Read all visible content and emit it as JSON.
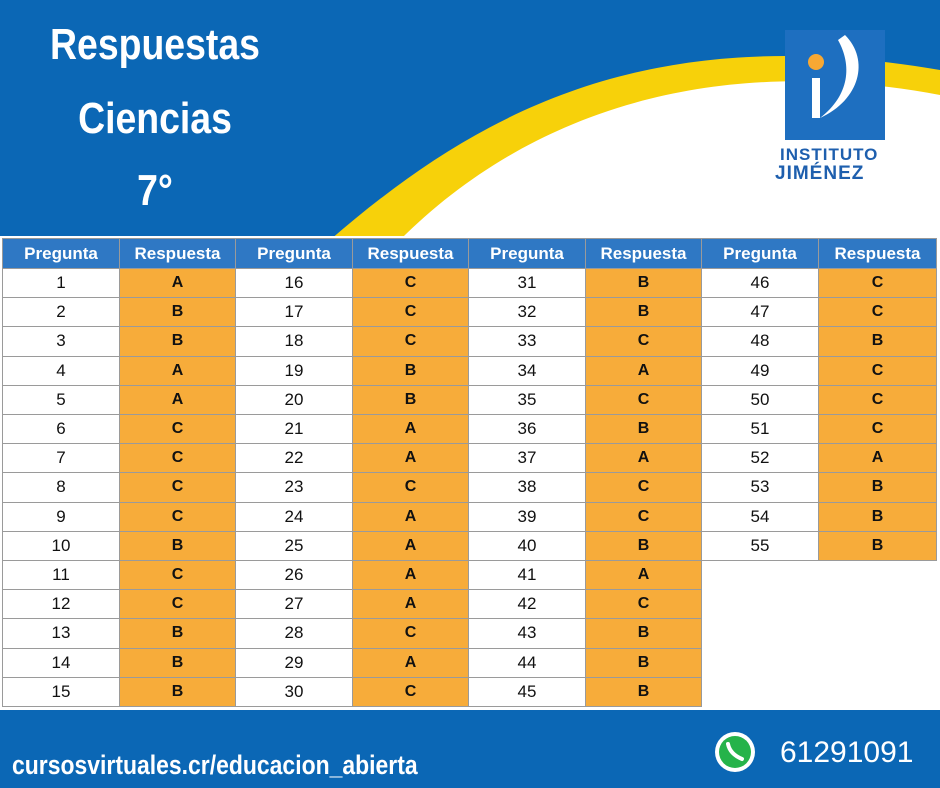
{
  "header": {
    "title_lines": [
      "Respuestas",
      "Ciencias",
      "7°"
    ]
  },
  "logo": {
    "line1": "INSTITUTO",
    "line2": "JIMÉNEZ"
  },
  "table": {
    "headers": [
      "Pregunta",
      "Respuesta",
      "Pregunta",
      "Respuesta",
      "Pregunta",
      "Respuesta",
      "Pregunta",
      "Respuesta"
    ],
    "groups": [
      {
        "rows": [
          [
            1,
            "A"
          ],
          [
            2,
            "B"
          ],
          [
            3,
            "B"
          ],
          [
            4,
            "A"
          ],
          [
            5,
            "A"
          ],
          [
            6,
            "C"
          ],
          [
            7,
            "C"
          ],
          [
            8,
            "C"
          ],
          [
            9,
            "C"
          ],
          [
            10,
            "B"
          ],
          [
            11,
            "C"
          ],
          [
            12,
            "C"
          ],
          [
            13,
            "B"
          ],
          [
            14,
            "B"
          ],
          [
            15,
            "B"
          ]
        ]
      },
      {
        "rows": [
          [
            16,
            "C"
          ],
          [
            17,
            "C"
          ],
          [
            18,
            "C"
          ],
          [
            19,
            "B"
          ],
          [
            20,
            "B"
          ],
          [
            21,
            "A"
          ],
          [
            22,
            "A"
          ],
          [
            23,
            "C"
          ],
          [
            24,
            "A"
          ],
          [
            25,
            "A"
          ],
          [
            26,
            "A"
          ],
          [
            27,
            "A"
          ],
          [
            28,
            "C"
          ],
          [
            29,
            "A"
          ],
          [
            30,
            "C"
          ]
        ]
      },
      {
        "rows": [
          [
            31,
            "B"
          ],
          [
            32,
            "B"
          ],
          [
            33,
            "C"
          ],
          [
            34,
            "A"
          ],
          [
            35,
            "C"
          ],
          [
            36,
            "B"
          ],
          [
            37,
            "A"
          ],
          [
            38,
            "C"
          ],
          [
            39,
            "C"
          ],
          [
            40,
            "B"
          ],
          [
            41,
            "A"
          ],
          [
            42,
            "C"
          ],
          [
            43,
            "B"
          ],
          [
            44,
            "B"
          ],
          [
            45,
            "B"
          ]
        ]
      },
      {
        "rows": [
          [
            46,
            "C"
          ],
          [
            47,
            "C"
          ],
          [
            48,
            "B"
          ],
          [
            49,
            "C"
          ],
          [
            50,
            "C"
          ],
          [
            51,
            "C"
          ],
          [
            52,
            "A"
          ],
          [
            53,
            "B"
          ],
          [
            54,
            "B"
          ],
          [
            55,
            "B"
          ]
        ]
      }
    ]
  },
  "footer": {
    "url": "cursosvirtuales.cr/educacion_abierta",
    "phone": "61291091"
  }
}
